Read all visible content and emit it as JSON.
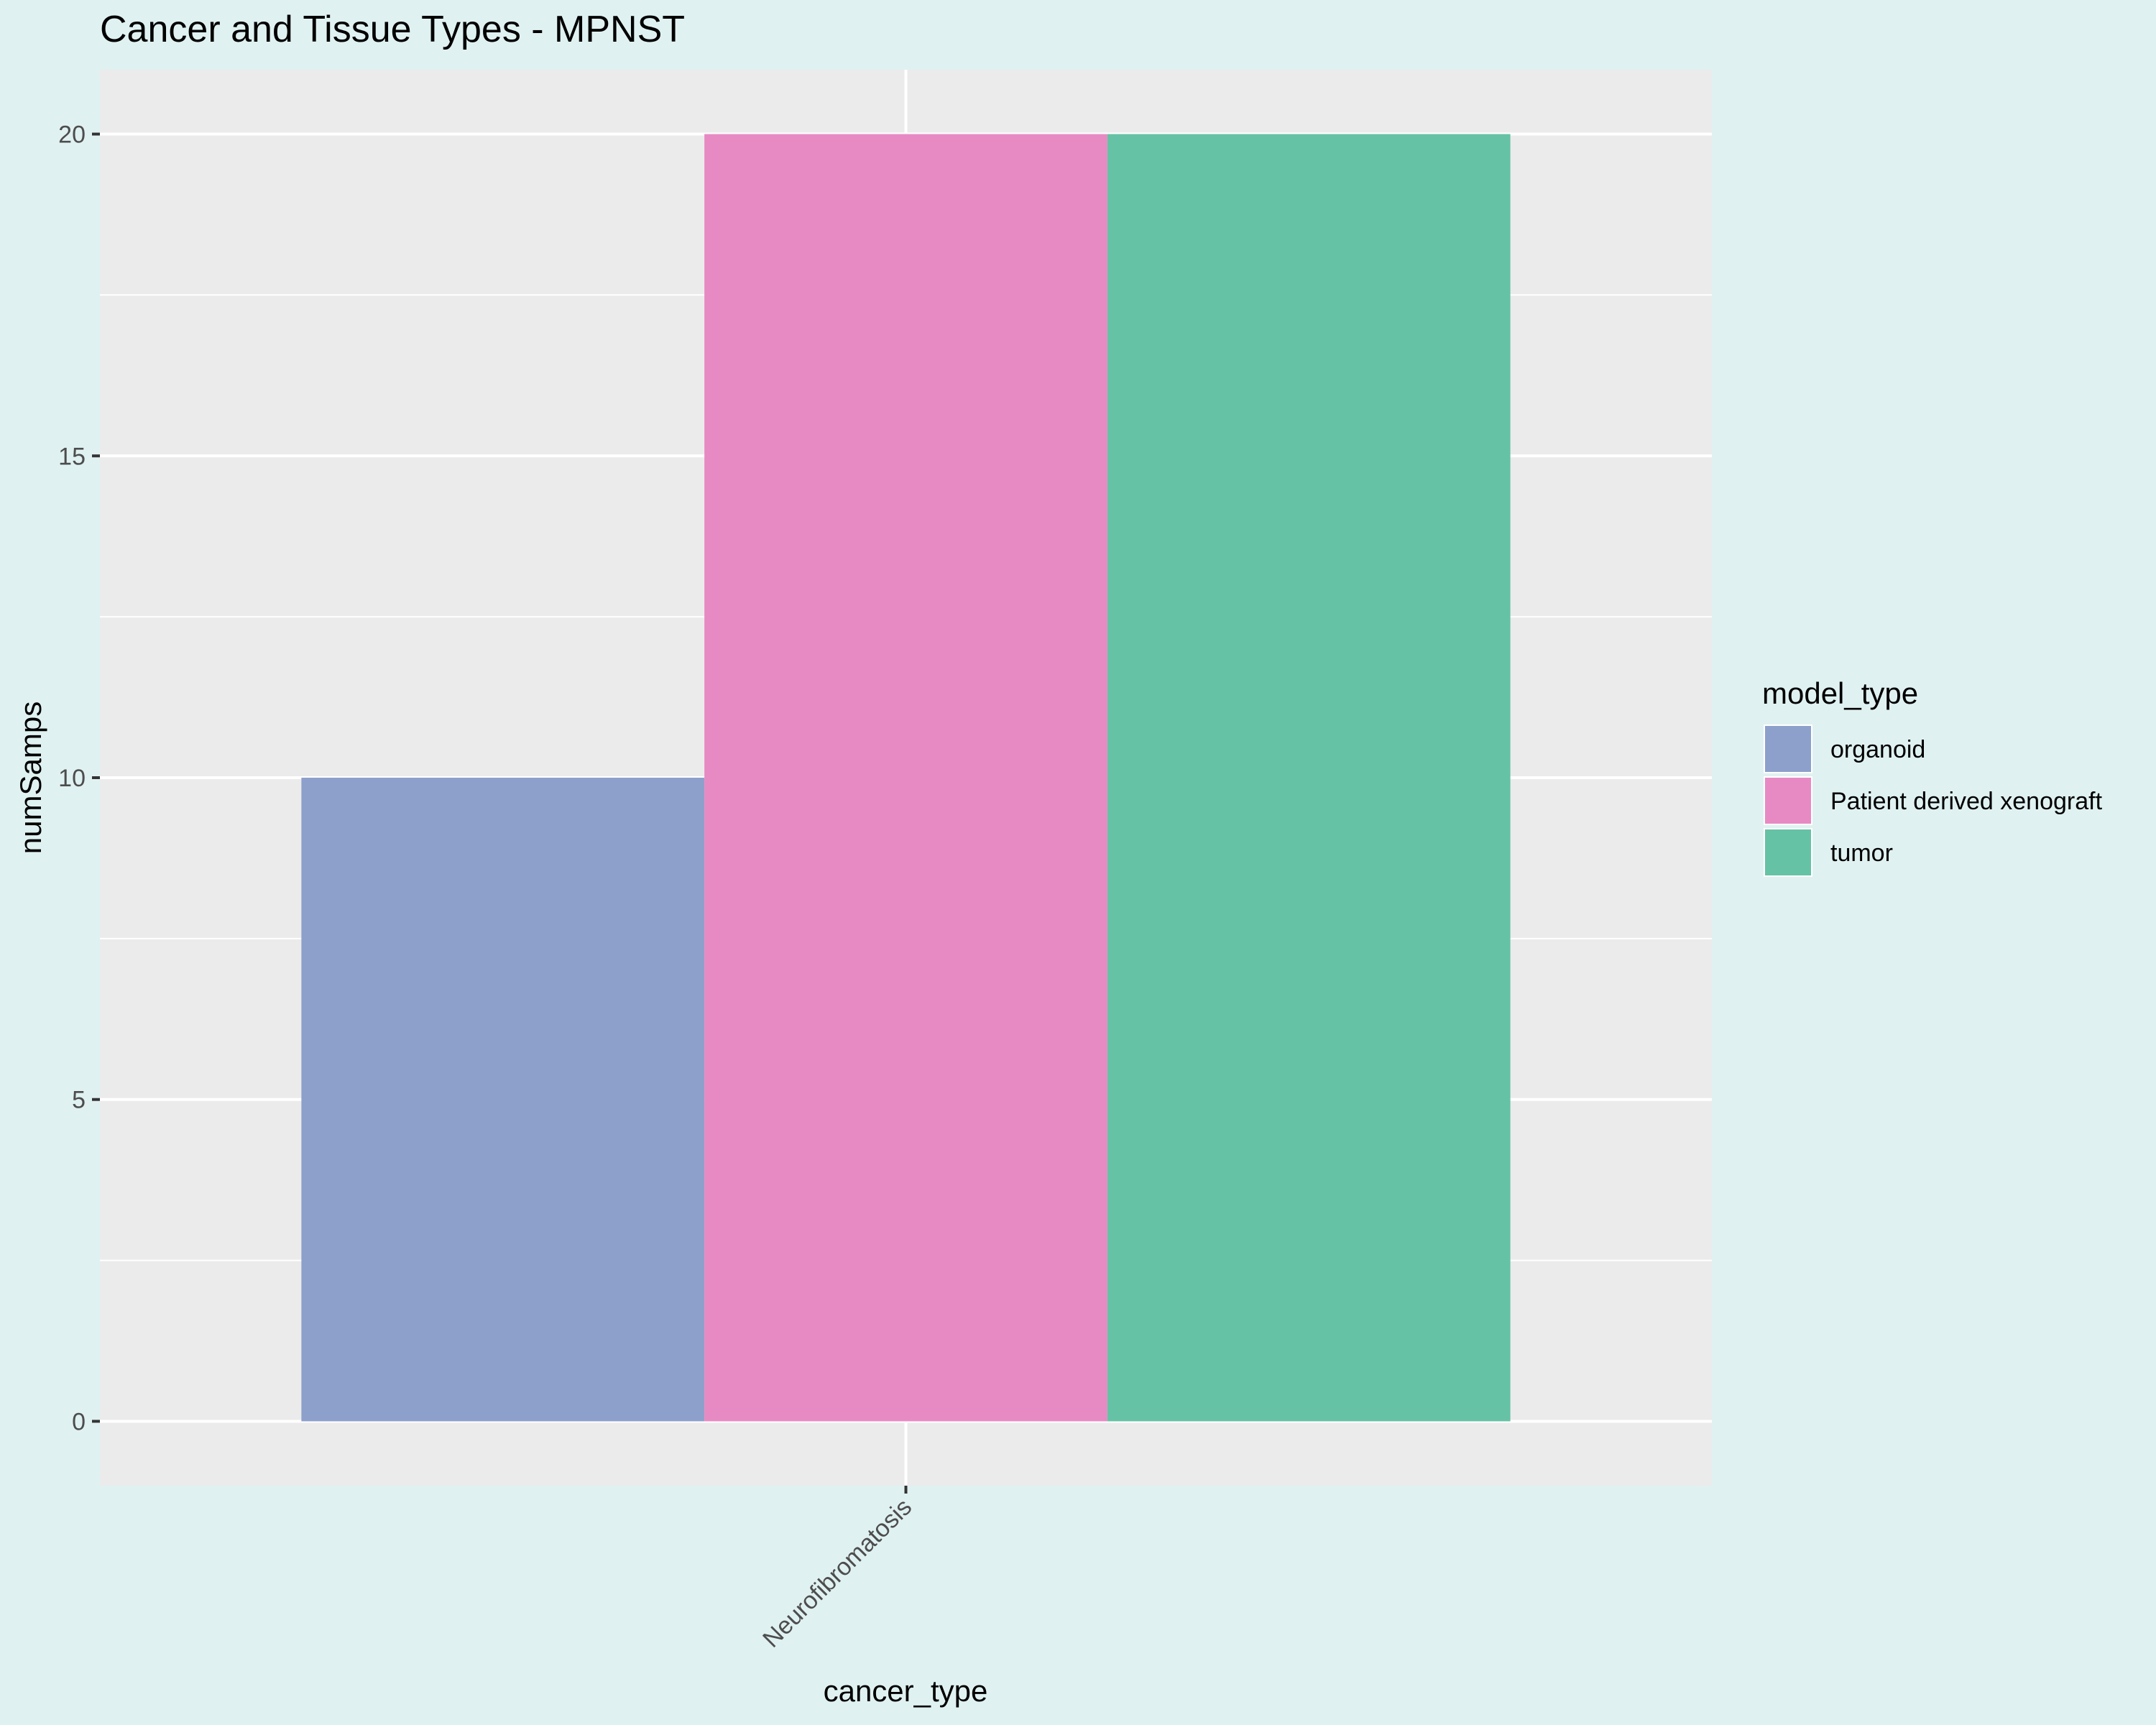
{
  "chart_data": {
    "type": "bar",
    "title": "Cancer and Tissue Types - MPNST",
    "xlabel": "cancer_type",
    "ylabel": "numSamps",
    "categories": [
      "Neurofibromatosis"
    ],
    "series": [
      {
        "name": "organoid",
        "values": [
          10
        ],
        "color": "#8da0cb"
      },
      {
        "name": "Patient derived xenograft",
        "values": [
          20
        ],
        "color": "#e78ac3"
      },
      {
        "name": "tumor",
        "values": [
          20
        ],
        "color": "#66c2a5"
      }
    ],
    "ylim": [
      -1,
      21
    ],
    "yticks": [
      0,
      5,
      10,
      15,
      20
    ],
    "grid": true,
    "legend": {
      "title": "model_type",
      "placement": "right"
    },
    "colors": {
      "panel_background": "#ebebeb",
      "page_background": "#e0f1f1",
      "grid": "#ffffff"
    }
  }
}
